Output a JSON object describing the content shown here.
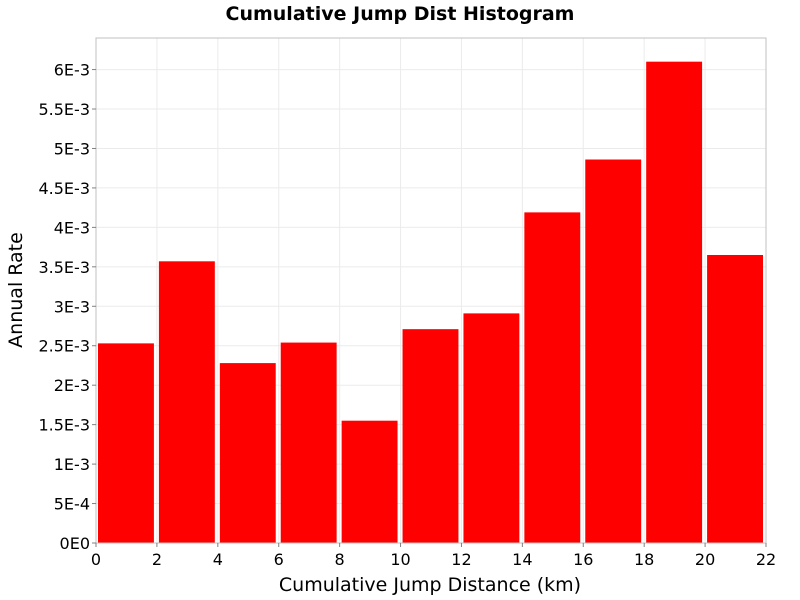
{
  "chart_data": {
    "type": "bar",
    "title": "Cumulative Jump Dist Histogram",
    "xlabel": "Cumulative Jump Distance (km)",
    "ylabel": "Annual Rate",
    "xlim": [
      0,
      22
    ],
    "ylim": [
      0,
      0.0064
    ],
    "bin_width": 2,
    "bins": [
      {
        "start": 0,
        "end": 2,
        "value": 0.00253
      },
      {
        "start": 2,
        "end": 4,
        "value": 0.00357
      },
      {
        "start": 4,
        "end": 6,
        "value": 0.00228
      },
      {
        "start": 6,
        "end": 8,
        "value": 0.00254
      },
      {
        "start": 8,
        "end": 10,
        "value": 0.00155
      },
      {
        "start": 10,
        "end": 12,
        "value": 0.00271
      },
      {
        "start": 12,
        "end": 14,
        "value": 0.00291
      },
      {
        "start": 14,
        "end": 16,
        "value": 0.00419
      },
      {
        "start": 16,
        "end": 18,
        "value": 0.00486
      },
      {
        "start": 18,
        "end": 20,
        "value": 0.0061
      },
      {
        "start": 20,
        "end": 22,
        "value": 0.00365
      }
    ],
    "x_ticks": [
      {
        "value": 0,
        "label": "0"
      },
      {
        "value": 2,
        "label": "2"
      },
      {
        "value": 4,
        "label": "4"
      },
      {
        "value": 6,
        "label": "6"
      },
      {
        "value": 8,
        "label": "8"
      },
      {
        "value": 10,
        "label": "10"
      },
      {
        "value": 12,
        "label": "12"
      },
      {
        "value": 14,
        "label": "14"
      },
      {
        "value": 16,
        "label": "16"
      },
      {
        "value": 18,
        "label": "18"
      },
      {
        "value": 20,
        "label": "20"
      },
      {
        "value": 22,
        "label": "22"
      }
    ],
    "y_ticks": [
      {
        "value": 0,
        "label": "0E0"
      },
      {
        "value": 0.0005,
        "label": "5E-4"
      },
      {
        "value": 0.001,
        "label": "1E-3"
      },
      {
        "value": 0.0015,
        "label": "1.5E-3"
      },
      {
        "value": 0.002,
        "label": "2E-3"
      },
      {
        "value": 0.0025,
        "label": "2.5E-3"
      },
      {
        "value": 0.003,
        "label": "3E-3"
      },
      {
        "value": 0.0035,
        "label": "3.5E-3"
      },
      {
        "value": 0.004,
        "label": "4E-3"
      },
      {
        "value": 0.0045,
        "label": "4.5E-3"
      },
      {
        "value": 0.005,
        "label": "5E-3"
      },
      {
        "value": 0.0055,
        "label": "5.5E-3"
      },
      {
        "value": 0.006,
        "label": "6E-3"
      }
    ],
    "grid": true,
    "bar_color": "#ff0000",
    "grid_color": "#ebebeb",
    "frame_color": "#c0c0c0"
  }
}
